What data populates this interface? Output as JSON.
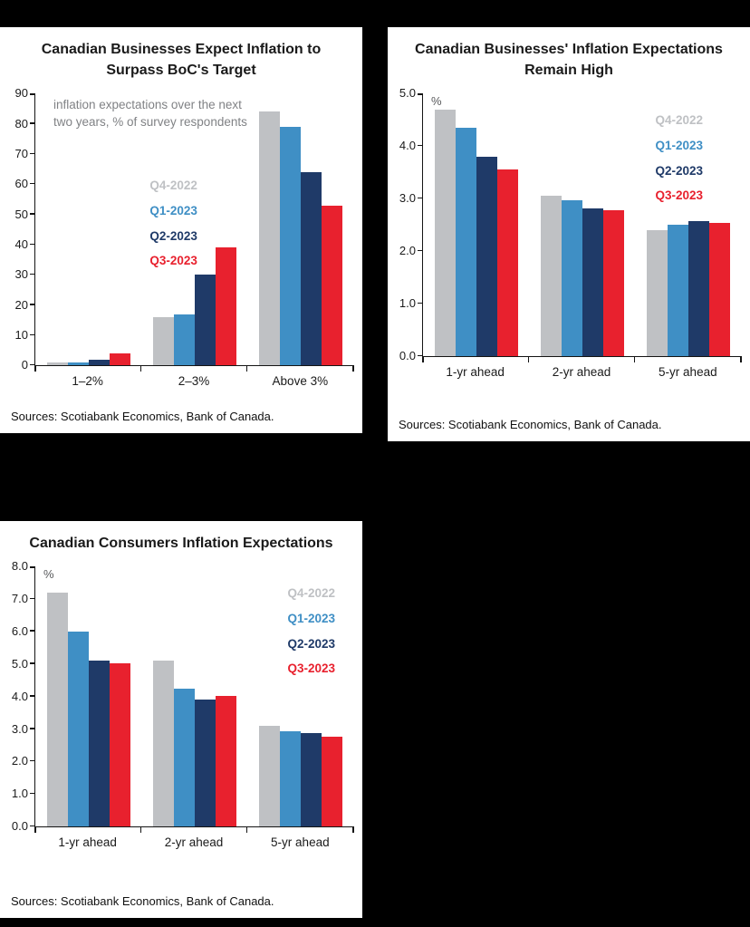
{
  "page": {
    "background": "#000000"
  },
  "chart_data": [
    {
      "type": "bar",
      "title": "Canadian Businesses Expect Inflation to Surpass BoC's Target",
      "note": "inflation expectations over the next two years, % of survey respondents",
      "categories": [
        "1–2%",
        "2–3%",
        "Above 3%"
      ],
      "series": [
        {
          "name": "Q4-2022",
          "color": "#bfc1c4",
          "values": [
            1,
            16,
            84
          ]
        },
        {
          "name": "Q1-2023",
          "color": "#3f8fc5",
          "values": [
            1,
            17,
            79
          ]
        },
        {
          "name": "Q2-2023",
          "color": "#1f3a68",
          "values": [
            2,
            30,
            64
          ]
        },
        {
          "name": "Q3-2023",
          "color": "#e8212e",
          "values": [
            4,
            39,
            53
          ]
        }
      ],
      "ylim": [
        0,
        90
      ],
      "yticks": [
        "0",
        "10",
        "20",
        "30",
        "40",
        "50",
        "60",
        "70",
        "80",
        "90"
      ],
      "grid": false,
      "legend_position": "center-left",
      "sources": "Sources: Scotiabank Economics, Bank of Canada."
    },
    {
      "type": "bar",
      "title": "Canadian Businesses' Inflation Expectations Remain High",
      "unit": "%",
      "categories": [
        "1-yr ahead",
        "2-yr ahead",
        "5-yr ahead"
      ],
      "series": [
        {
          "name": "Q4-2022",
          "color": "#bfc1c4",
          "values": [
            4.7,
            3.05,
            2.4
          ]
        },
        {
          "name": "Q1-2023",
          "color": "#3f8fc5",
          "values": [
            4.35,
            2.97,
            2.5
          ]
        },
        {
          "name": "Q2-2023",
          "color": "#1f3a68",
          "values": [
            3.8,
            2.81,
            2.57
          ]
        },
        {
          "name": "Q3-2023",
          "color": "#e8212e",
          "values": [
            3.56,
            2.78,
            2.54
          ]
        }
      ],
      "ylim": [
        0,
        5
      ],
      "yticks": [
        "0.0",
        "1.0",
        "2.0",
        "3.0",
        "4.0",
        "5.0"
      ],
      "grid": false,
      "legend_position": "top-right",
      "sources": "Sources: Scotiabank Economics, Bank of Canada."
    },
    {
      "type": "bar",
      "title": "Canadian Consumers Inflation Expectations",
      "unit": "%",
      "categories": [
        "1-yr ahead",
        "2-yr ahead",
        "5-yr ahead"
      ],
      "series": [
        {
          "name": "Q4-2022",
          "color": "#bfc1c4",
          "values": [
            7.2,
            5.1,
            3.1
          ]
        },
        {
          "name": "Q1-2023",
          "color": "#3f8fc5",
          "values": [
            6.0,
            4.25,
            2.92
          ]
        },
        {
          "name": "Q2-2023",
          "color": "#1f3a68",
          "values": [
            5.1,
            3.9,
            2.88
          ]
        },
        {
          "name": "Q3-2023",
          "color": "#e8212e",
          "values": [
            5.02,
            4.03,
            2.76
          ]
        }
      ],
      "ylim": [
        0,
        8
      ],
      "yticks": [
        "0.0",
        "1.0",
        "2.0",
        "3.0",
        "4.0",
        "5.0",
        "6.0",
        "7.0",
        "8.0"
      ],
      "grid": false,
      "legend_position": "top-right",
      "sources": "Sources: Scotiabank Economics, Bank of Canada."
    }
  ]
}
